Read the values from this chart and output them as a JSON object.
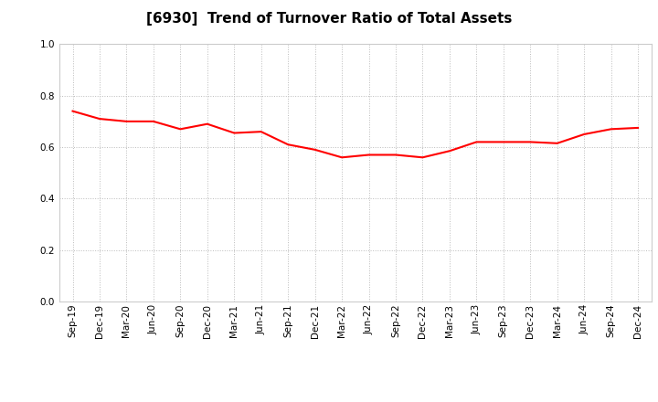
{
  "title": "[6930]  Trend of Turnover Ratio of Total Assets",
  "x_labels": [
    "Sep-19",
    "Dec-19",
    "Mar-20",
    "Jun-20",
    "Sep-20",
    "Dec-20",
    "Mar-21",
    "Jun-21",
    "Sep-21",
    "Dec-21",
    "Mar-22",
    "Jun-22",
    "Sep-22",
    "Dec-22",
    "Mar-23",
    "Jun-23",
    "Sep-23",
    "Dec-23",
    "Mar-24",
    "Jun-24",
    "Sep-24",
    "Dec-24"
  ],
  "y_values": [
    0.74,
    0.71,
    0.7,
    0.7,
    0.67,
    0.69,
    0.655,
    0.66,
    0.61,
    0.59,
    0.56,
    0.57,
    0.57,
    0.56,
    0.585,
    0.62,
    0.62,
    0.62,
    0.615,
    0.65,
    0.67,
    0.675
  ],
  "line_color": "#FF0000",
  "line_width": 1.5,
  "ylim": [
    0.0,
    1.0
  ],
  "yticks": [
    0.0,
    0.2,
    0.4,
    0.6,
    0.8,
    1.0
  ],
  "background_color": "#FFFFFF",
  "grid_color": "#BBBBBB",
  "title_fontsize": 11,
  "tick_fontsize": 7.5
}
